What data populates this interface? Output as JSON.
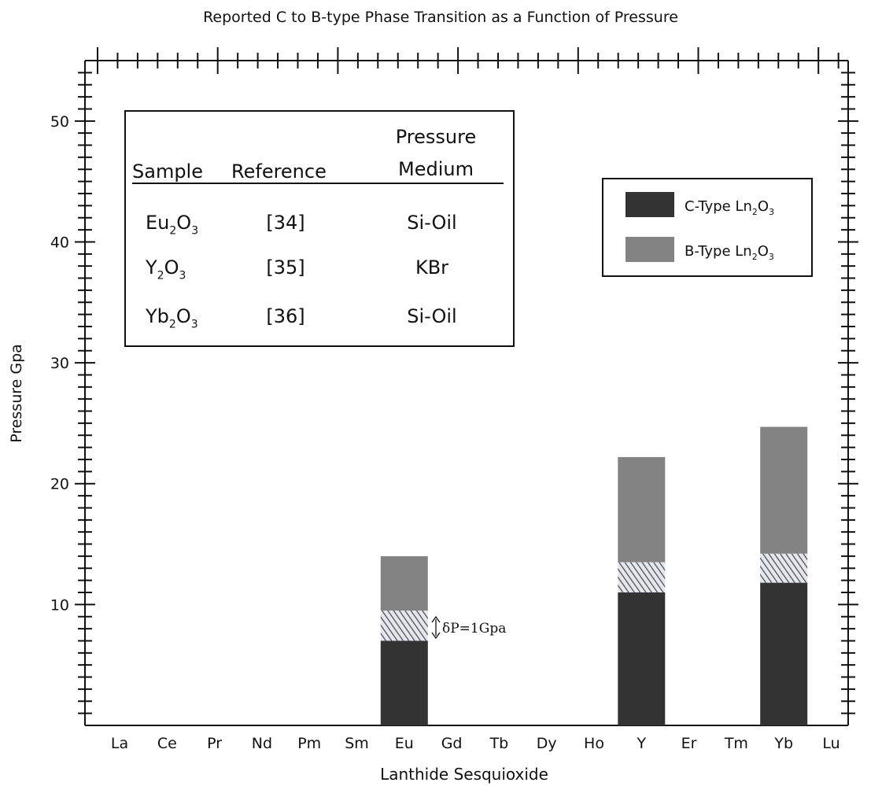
{
  "chart_data": {
    "type": "bar",
    "title": "Reported C to B-type Phase Transition as a Function of Pressure",
    "xlabel": "Lanthide Sesquioxide",
    "ylabel": "Pressure Gpa",
    "ylim": [
      0,
      55
    ],
    "y_ticks": [
      "10",
      "20",
      "30",
      "40",
      "50"
    ],
    "categories": [
      "La",
      "Ce",
      "Pr",
      "Nd",
      "Pm",
      "Sm",
      "Eu",
      "Gd",
      "Tb",
      "Dy",
      "Ho",
      "Y",
      "Er",
      "Tm",
      "Yb",
      "Lu"
    ],
    "series": [
      {
        "name": "C-Type Ln2O3",
        "color": "#333333",
        "values": [
          null,
          null,
          null,
          null,
          null,
          null,
          7.0,
          null,
          null,
          null,
          null,
          11.0,
          null,
          null,
          11.8,
          null
        ]
      },
      {
        "name": "B-Type Ln2O3",
        "color": "#838383",
        "ranges": [
          null,
          null,
          null,
          null,
          null,
          null,
          [
            9.5,
            14.0
          ],
          null,
          null,
          null,
          null,
          [
            13.5,
            22.2
          ],
          null,
          null,
          [
            14.2,
            24.7
          ],
          null
        ]
      }
    ],
    "transition_ranges": [
      null,
      null,
      null,
      null,
      null,
      null,
      [
        7.0,
        9.5
      ],
      null,
      null,
      null,
      null,
      [
        11.0,
        13.5
      ],
      null,
      null,
      [
        11.8,
        14.2
      ],
      null
    ],
    "grid": false,
    "legend_position": "top-right",
    "legend": [
      {
        "base": "C-Type Ln",
        "sub1": "2",
        "mid": "O",
        "sub2": "3",
        "color": "#333333"
      },
      {
        "base": "B-Type Ln",
        "sub1": "2",
        "mid": "O",
        "sub2": "3",
        "color": "#838383"
      }
    ],
    "annotation": "δP=1Gpa",
    "reference_table": {
      "headers": [
        "Sample",
        "Reference",
        "Pressure",
        "Medium"
      ],
      "rows": [
        {
          "el": "Eu",
          "sub1": "2",
          "o": "O",
          "sub2": "3",
          "ref": "[34]",
          "medium": "Si-Oil"
        },
        {
          "el": "Y",
          "sub1": "2",
          "o": "O",
          "sub2": "3",
          "ref": "[35]",
          "medium": "KBr"
        },
        {
          "el": "Yb",
          "sub1": "2",
          "o": "O",
          "sub2": "3",
          "ref": "[36]",
          "medium": "Si-Oil"
        }
      ]
    }
  }
}
